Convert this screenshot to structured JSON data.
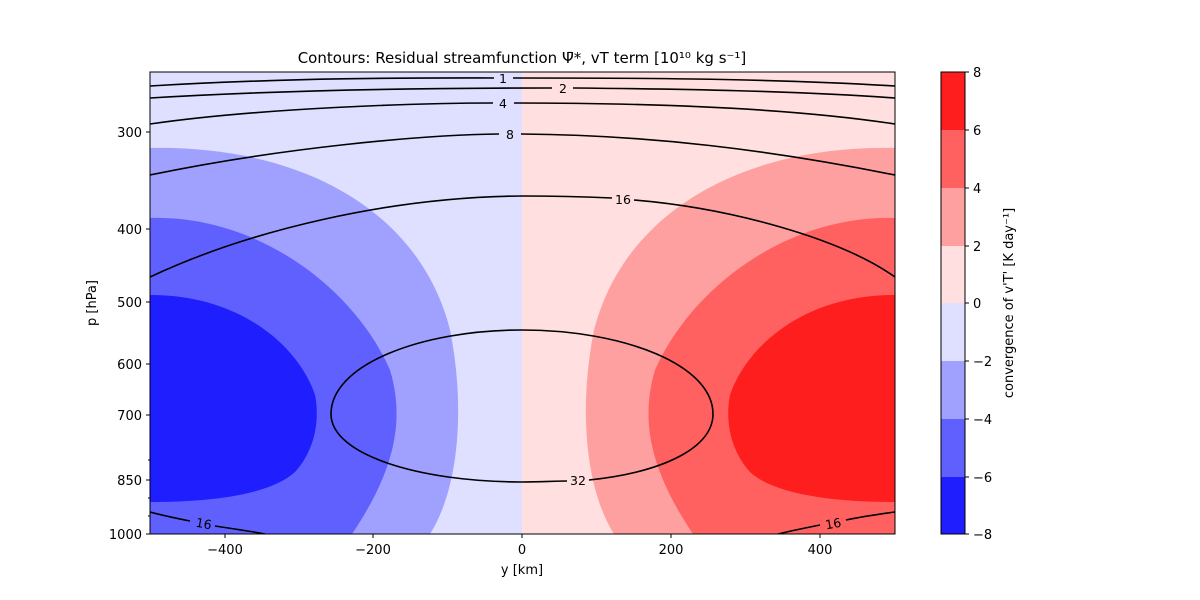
{
  "chart_data": {
    "type": "contour",
    "title": "Contours: Residual streamfunction Ψ̄*, vT term [10¹⁰ kg s⁻¹]",
    "xlabel": "y [km]",
    "ylabel": "p [hPa]",
    "xlim": [
      -500,
      500
    ],
    "ylim": [
      1000,
      220
    ],
    "y_scale": "log",
    "x_ticks": [
      "−400",
      "−200",
      "0",
      "200",
      "400"
    ],
    "y_ticks": [
      "300",
      "400",
      "500",
      "600",
      "700",
      "850",
      "1000"
    ],
    "filled_field": {
      "name": "convergence of v'T'",
      "levels": [
        -8,
        -6,
        -4,
        -2,
        0,
        2,
        4,
        6,
        8
      ],
      "colors": [
        "#1e1eff",
        "#6060ff",
        "#a0a0ff",
        "#dfdfff",
        "#ffdfdf",
        "#ffa0a0",
        "#ff6060",
        "#ff1e1e"
      ],
      "peak_value": 7.5,
      "peak_pressure": 700
    },
    "contour_lines": {
      "levels": [
        1,
        2,
        4,
        8,
        16,
        32
      ],
      "labels": [
        "1",
        "2",
        "4",
        "8",
        "16",
        "32",
        "16",
        "16"
      ],
      "color": "#000000"
    },
    "colorbar": {
      "label": "convergence of v'T' [K day⁻¹]",
      "ticks": [
        "8",
        "6",
        "4",
        "2",
        "0",
        "−2",
        "−4",
        "−6",
        "−8"
      ]
    },
    "grid": false
  }
}
